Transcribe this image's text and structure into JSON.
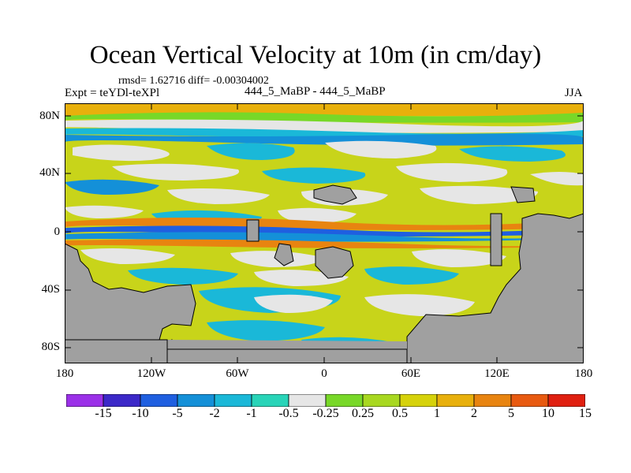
{
  "title": "Ocean Vertical Velocity at 10m (in cm/day)",
  "stats_text": "rmsd= 1.62716 diff= -0.00304002",
  "expt_text": "Expt = teYDl-teXPl",
  "cases_text": "444_5_MaBP - 444_5_MaBP",
  "season": "JJA",
  "lat_ticks": [
    "80N",
    "40N",
    "0",
    "40S",
    "80S"
  ],
  "lon_ticks": [
    "180",
    "120W",
    "60W",
    "0",
    "60E",
    "120E",
    "180"
  ],
  "colorbar": {
    "labels": [
      "-15",
      "-10",
      "-5",
      "-2",
      "-1",
      "-0.5",
      "-0.25",
      "0.25",
      "0.5",
      "1",
      "2",
      "5",
      "10",
      "15"
    ],
    "colors": [
      "#9b30e8",
      "#3c28c8",
      "#1f5fe0",
      "#1490d8",
      "#1ab8d8",
      "#28d4b8",
      "#e6e6e6",
      "#78d828",
      "#a8d820",
      "#d6d20a",
      "#e8b00c",
      "#e88410",
      "#e85a10",
      "#e02010"
    ]
  },
  "land_color": "#a0a0a0"
}
